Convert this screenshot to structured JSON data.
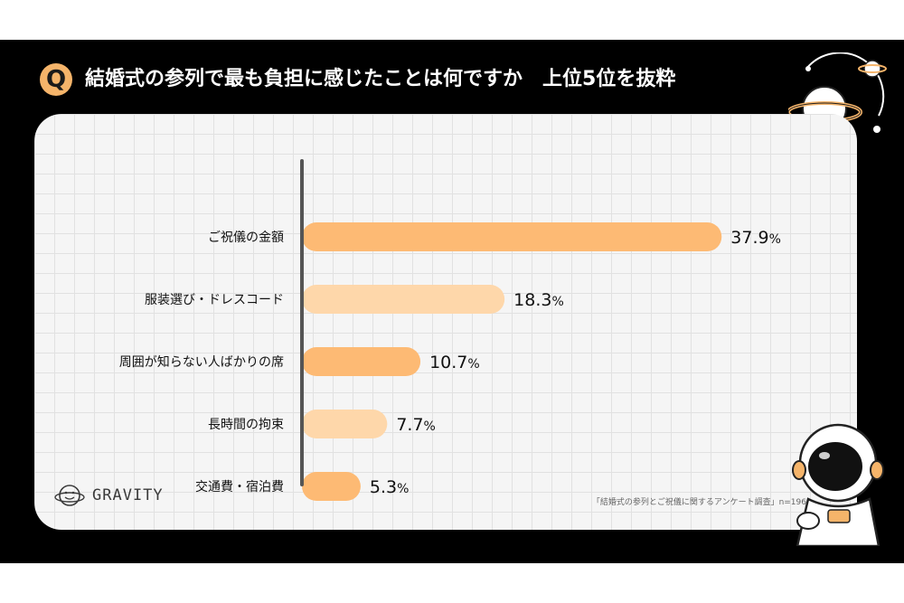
{
  "header": {
    "badge": "Q",
    "title": "結婚式の参列で最も負担に感じたことは何ですか",
    "subtitle": "上位5位を抜粋"
  },
  "brand": {
    "name": "GRAVITY"
  },
  "source": "「結婚式の参列とご祝儀に関するアンケート調査」n=196",
  "colors": {
    "primary_bar": "#fdba74",
    "secondary_bar": "#fed7aa",
    "accent": "#f5b46a"
  },
  "chart_data": {
    "type": "bar",
    "orientation": "horizontal",
    "categories": [
      "ご祝儀の金額",
      "服装選び・ドレスコード",
      "周囲が知らない人ばかりの席",
      "長時間の拘束",
      "交通費・宿泊費"
    ],
    "values": [
      37.9,
      18.3,
      10.7,
      7.7,
      5.3
    ],
    "value_labels": [
      "37.9",
      "18.3",
      "10.7",
      "7.7",
      "5.3"
    ],
    "unit": "%",
    "bar_colors": [
      "#fdba74",
      "#fed7aa",
      "#fdba74",
      "#fed7aa",
      "#fdba74"
    ],
    "grid": true
  }
}
